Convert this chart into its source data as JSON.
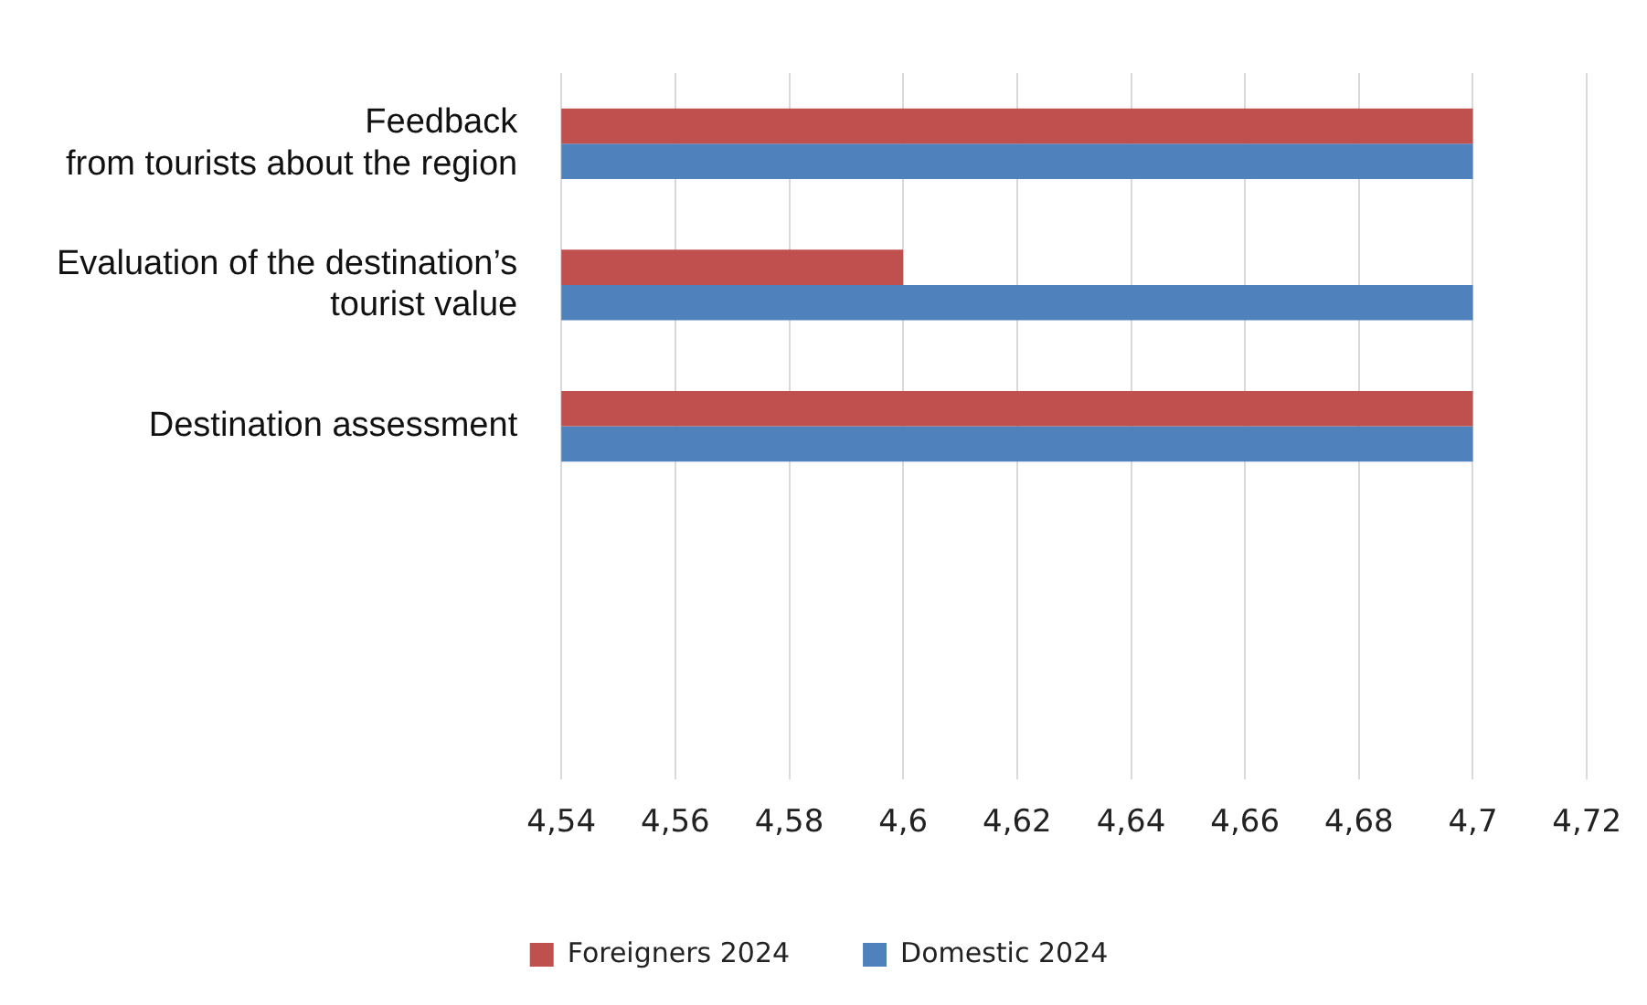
{
  "chart_data": {
    "type": "bar",
    "orientation": "horizontal",
    "categories": [
      "Feedback\nfrom tourists about the region",
      "Evaluation of the destination’s\ntourist value",
      "Destination assessment",
      null,
      null
    ],
    "series": [
      {
        "name": "Foreigners 2024",
        "color": "#c0504d",
        "values": [
          4.7,
          4.6,
          4.7,
          null,
          null
        ]
      },
      {
        "name": "Domestic 2024",
        "color": "#4f81bd",
        "values": [
          4.7,
          4.7,
          4.7,
          null,
          null
        ]
      }
    ],
    "xlim": [
      4.54,
      4.72
    ],
    "xticks": [
      {
        "value": 4.54,
        "label": "4,54"
      },
      {
        "value": 4.56,
        "label": "4,56"
      },
      {
        "value": 4.58,
        "label": "4,58"
      },
      {
        "value": 4.6,
        "label": "4,6"
      },
      {
        "value": 4.62,
        "label": "4,62"
      },
      {
        "value": 4.64,
        "label": "4,64"
      },
      {
        "value": 4.66,
        "label": "4,66"
      },
      {
        "value": 4.68,
        "label": "4,68"
      },
      {
        "value": 4.7,
        "label": "4,7"
      },
      {
        "value": 4.72,
        "label": "4,72"
      }
    ],
    "grid": "x",
    "legend": "bottom"
  }
}
